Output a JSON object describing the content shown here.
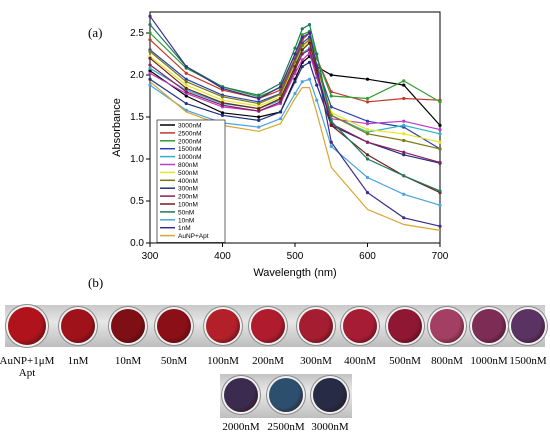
{
  "panel_a_label": "(a)",
  "panel_b_label": "(b)",
  "chart_data": {
    "type": "line",
    "xlabel": "Wavelength (nm)",
    "ylabel": "Absorbance",
    "xlim": [
      300,
      700
    ],
    "ylim": [
      0.0,
      2.75
    ],
    "x_ticks": [
      "300",
      "400",
      "500",
      "600",
      "700"
    ],
    "y_ticks": [
      "0.0",
      "0.5",
      "1.0",
      "1.5",
      "2.0",
      "2.5"
    ],
    "legend_position": "bottom-left",
    "x": [
      300,
      350,
      400,
      450,
      480,
      500,
      510,
      520,
      530,
      550,
      600,
      650,
      700
    ],
    "series": [
      {
        "name": "3000nM",
        "color": "#000000",
        "values": [
          2.05,
          1.75,
          1.55,
          1.5,
          1.56,
          1.95,
          2.15,
          2.22,
          2.1,
          2.0,
          1.95,
          1.88,
          1.4
        ]
      },
      {
        "name": "2500nM",
        "color": "#c0392b",
        "values": [
          2.42,
          2.02,
          1.82,
          1.72,
          1.82,
          2.2,
          2.42,
          2.5,
          2.2,
          1.8,
          1.68,
          1.72,
          1.7
        ]
      },
      {
        "name": "2000nM",
        "color": "#2e9e2e",
        "values": [
          2.5,
          2.08,
          1.86,
          1.74,
          1.85,
          2.25,
          2.48,
          2.52,
          2.2,
          1.75,
          1.72,
          1.93,
          1.68
        ]
      },
      {
        "name": "1500nM",
        "color": "#2b3fb3",
        "values": [
          2.3,
          1.95,
          1.76,
          1.68,
          1.78,
          2.18,
          2.38,
          2.45,
          2.12,
          1.62,
          1.45,
          1.38,
          1.12
        ]
      },
      {
        "name": "1000nM",
        "color": "#2bb3c9",
        "values": [
          2.08,
          1.82,
          1.66,
          1.6,
          1.7,
          2.08,
          2.26,
          2.32,
          2.02,
          1.52,
          1.32,
          1.4,
          1.3
        ]
      },
      {
        "name": "800nM",
        "color": "#c23ac2",
        "values": [
          2.02,
          1.78,
          1.62,
          1.57,
          1.66,
          2.02,
          2.18,
          2.26,
          1.97,
          1.48,
          1.42,
          1.45,
          1.35
        ]
      },
      {
        "name": "500nM",
        "color": "#e6e622",
        "values": [
          2.22,
          1.88,
          1.7,
          1.63,
          1.74,
          2.12,
          2.32,
          2.4,
          2.1,
          1.55,
          1.35,
          1.3,
          1.2
        ]
      },
      {
        "name": "400nM",
        "color": "#7a7a14",
        "values": [
          2.28,
          1.92,
          1.74,
          1.66,
          1.77,
          2.16,
          2.35,
          2.42,
          2.12,
          1.52,
          1.3,
          1.22,
          1.12
        ]
      },
      {
        "name": "300nM",
        "color": "#1e2f80",
        "values": [
          1.95,
          1.66,
          1.52,
          1.46,
          1.56,
          1.92,
          2.1,
          2.15,
          1.88,
          1.4,
          1.2,
          1.05,
          0.95
        ]
      },
      {
        "name": "200nM",
        "color": "#8b1e5a",
        "values": [
          2.12,
          1.8,
          1.64,
          1.57,
          1.68,
          2.06,
          2.25,
          2.3,
          2.02,
          1.42,
          1.2,
          1.08,
          0.96
        ]
      },
      {
        "name": "100nM",
        "color": "#6b2121",
        "values": [
          2.2,
          1.84,
          1.67,
          1.6,
          1.72,
          2.1,
          2.3,
          2.38,
          2.06,
          1.4,
          1.05,
          0.8,
          0.6
        ]
      },
      {
        "name": "50nM",
        "color": "#1f7a5a",
        "values": [
          2.6,
          2.1,
          1.86,
          1.76,
          1.9,
          2.32,
          2.55,
          2.6,
          2.25,
          1.45,
          1.0,
          0.8,
          0.62
        ]
      },
      {
        "name": "10nM",
        "color": "#4aa3df",
        "values": [
          1.88,
          1.58,
          1.43,
          1.38,
          1.48,
          1.78,
          1.92,
          1.95,
          1.7,
          1.15,
          0.78,
          0.58,
          0.45
        ]
      },
      {
        "name": "1nM",
        "color": "#3a2d8c",
        "values": [
          2.7,
          2.1,
          1.84,
          1.72,
          1.86,
          2.25,
          2.45,
          2.5,
          2.1,
          1.2,
          0.6,
          0.3,
          0.2
        ]
      },
      {
        "name": "AuNP+Apt",
        "color": "#d9a62e",
        "values": [
          1.92,
          1.56,
          1.4,
          1.33,
          1.42,
          1.72,
          1.85,
          1.85,
          1.55,
          0.9,
          0.4,
          0.22,
          0.15
        ]
      }
    ]
  },
  "samples_row1": [
    {
      "label": "AuNP+1μM\nApt",
      "color": "#b0131c"
    },
    {
      "label": "1nM",
      "color": "#a0121a"
    },
    {
      "label": "10nM",
      "color": "#7e0f15"
    },
    {
      "label": "50nM",
      "color": "#8a0f16"
    },
    {
      "label": "100nM",
      "color": "#b3202a"
    },
    {
      "label": "200nM",
      "color": "#b01c2e"
    },
    {
      "label": "300nM",
      "color": "#a51d30"
    },
    {
      "label": "400nM",
      "color": "#a71c35"
    },
    {
      "label": "500nM",
      "color": "#8f1733"
    },
    {
      "label": "800nM",
      "color": "#a33f63"
    },
    {
      "label": "1000nM",
      "color": "#7d2c55"
    },
    {
      "label": "1500nM",
      "color": "#5a3363"
    }
  ],
  "samples_row2": [
    {
      "label": "2000nM",
      "color": "#3b2c4f"
    },
    {
      "label": "2500nM",
      "color": "#2c4f6e"
    },
    {
      "label": "3000nM",
      "color": "#272b45"
    }
  ]
}
